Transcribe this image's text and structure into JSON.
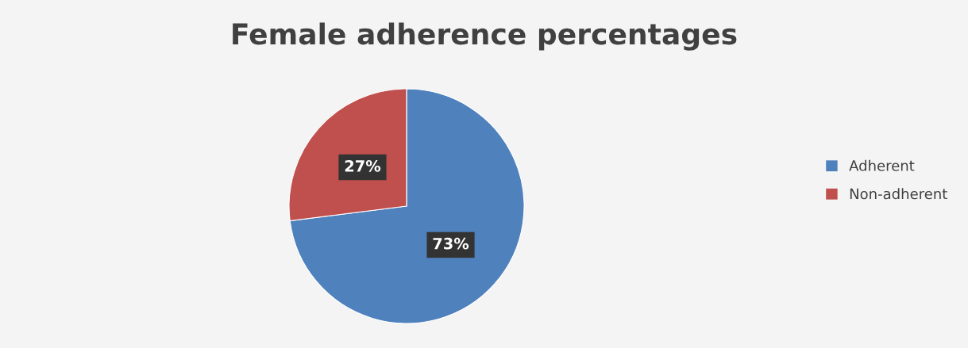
{
  "chart_data": {
    "type": "pie",
    "title": "Female adherence percentages",
    "categories": [
      "Adherent",
      "Non-adherent"
    ],
    "values": [
      73,
      27
    ],
    "colors": [
      "#4f81bd",
      "#c0504d"
    ],
    "value_labels": [
      "73%",
      "27%"
    ],
    "legend": "right"
  }
}
